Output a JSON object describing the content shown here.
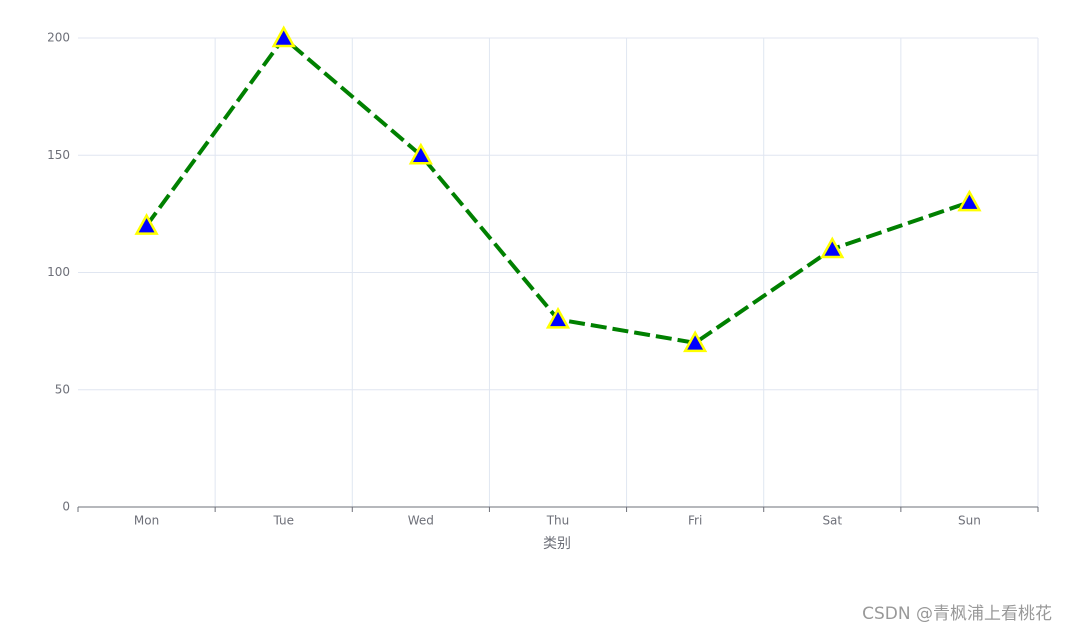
{
  "chart_data": {
    "type": "line",
    "categories": [
      "Mon",
      "Tue",
      "Wed",
      "Thu",
      "Fri",
      "Sat",
      "Sun"
    ],
    "values": [
      120,
      200,
      150,
      80,
      70,
      110,
      130
    ],
    "color": "#008000",
    "line_style": "dashed",
    "marker": "triangle",
    "marker_color": "#0000ff",
    "marker_edge_color": "#ffff00",
    "x_label": "类别",
    "ylim": [
      0,
      200
    ],
    "yticks": [
      0,
      50,
      100,
      150,
      200
    ],
    "grid": true
  },
  "watermark": "CSDN @青枫浦上看桃花"
}
